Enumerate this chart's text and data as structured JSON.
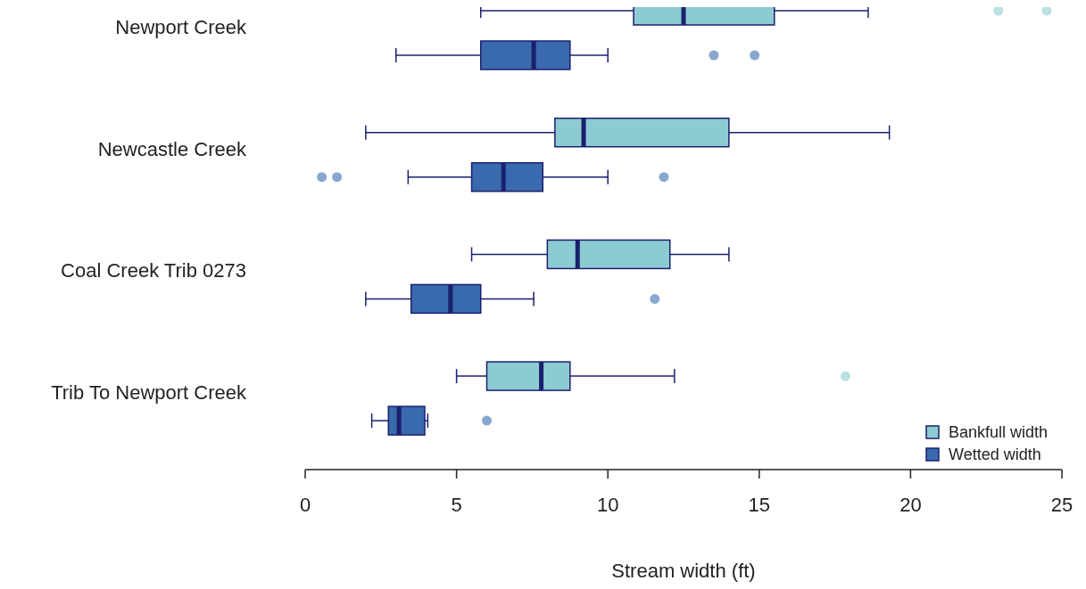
{
  "chart_data": {
    "type": "box",
    "orientation": "horizontal",
    "xlabel": "Stream width (ft)",
    "categories": [
      "Newport Creek",
      "Newcastle Creek",
      "Coal Creek Trib 0273",
      "Trib To Newport Creek"
    ],
    "xlim": [
      0,
      25
    ],
    "xticks": [
      0,
      5,
      10,
      15,
      20,
      25
    ],
    "grid": false,
    "legend": "bottom right",
    "series": [
      {
        "name": "Bankfull width",
        "color": "#8ccbd2",
        "boxes": [
          {
            "low": 5.8,
            "q1": 10.85,
            "median": 12.5,
            "q3": 15.5,
            "high": 18.6,
            "outliers": [
              22.9,
              24.5
            ]
          },
          {
            "low": 2.0,
            "q1": 8.25,
            "median": 9.2,
            "q3": 14.0,
            "high": 19.3
          },
          {
            "low": 5.5,
            "q1": 8.0,
            "median": 9.0,
            "q3": 12.05,
            "high": 14.0
          },
          {
            "low": 5.0,
            "q1": 6.0,
            "median": 7.8,
            "q3": 8.75,
            "high": 12.2,
            "outliers": [
              17.85
            ]
          }
        ]
      },
      {
        "name": "Wetted width",
        "color": "#3a6aae",
        "boxes": [
          {
            "low": 3.0,
            "q1": 5.8,
            "median": 7.55,
            "q3": 8.75,
            "high": 10.0,
            "outliers": [
              13.5,
              14.85
            ]
          },
          {
            "low": 3.4,
            "q1": 5.5,
            "median": 6.55,
            "q3": 7.85,
            "high": 10.0,
            "outliers": [
              0.55,
              1.05,
              11.85
            ]
          },
          {
            "low": 2.0,
            "q1": 3.5,
            "median": 4.8,
            "q3": 5.8,
            "high": 7.55,
            "outliers": [
              11.55
            ]
          },
          {
            "low": 2.2,
            "q1": 2.75,
            "median": 3.1,
            "q3": 3.95,
            "high": 4.05,
            "outliers": [
              6.0
            ]
          }
        ]
      }
    ]
  }
}
